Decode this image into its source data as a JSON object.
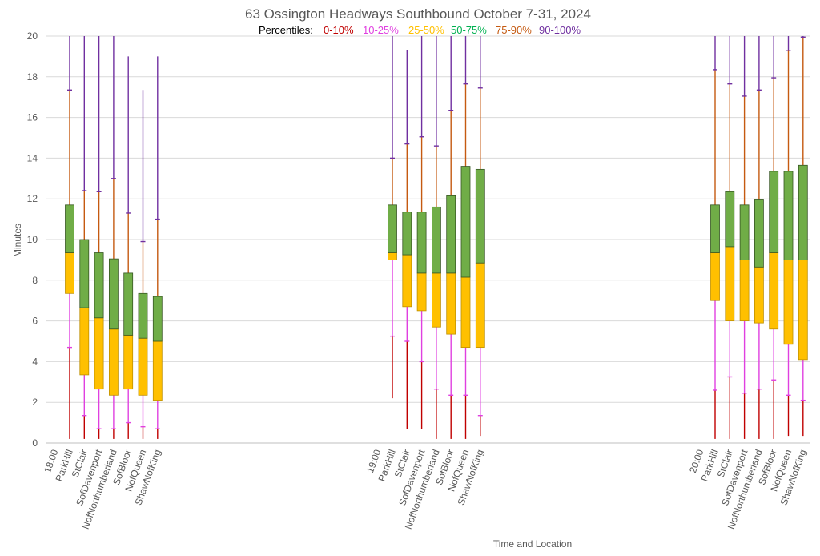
{
  "chart_data": {
    "type": "box",
    "title": "63 Ossington Headways Southbound October 7-31, 2024",
    "legend": {
      "prefix": "Percentiles:",
      "items": [
        {
          "label": "0-10%",
          "color": "#c00000"
        },
        {
          "label": "10-25%",
          "color": "#e040e0"
        },
        {
          "label": "25-50%",
          "color": "#ffc000"
        },
        {
          "label": "50-75%",
          "color": "#00b050"
        },
        {
          "label": "75-90%",
          "color": "#c55a11"
        },
        {
          "label": "90-100%",
          "color": "#7030a0"
        }
      ]
    },
    "xlabel": "Time and Location",
    "ylabel": "Minutes",
    "ylim": [
      0,
      20
    ],
    "yticks": [
      0,
      2,
      4,
      6,
      8,
      10,
      12,
      14,
      16,
      18,
      20
    ],
    "grid": true,
    "colors": {
      "p0_10": "#c00000",
      "p10_25": "#e040e0",
      "p25_50": "#ffc000",
      "p50_75": "#70ad47",
      "p75_90": "#c55a11",
      "p90_100": "#7030a0",
      "box_outline_lower": "#bf9000",
      "box_outline_upper": "#375623"
    },
    "groups": [
      {
        "time": "18:00",
        "boxes": [
          {
            "location": "ParkHill",
            "min": 0.2,
            "p10": 4.7,
            "p25": 7.35,
            "median": 9.35,
            "p75": 11.7,
            "p90": 17.35,
            "max": 20
          },
          {
            "location": "StClair",
            "min": 0.2,
            "p10": 1.35,
            "p25": 3.35,
            "median": 6.65,
            "p75": 10.0,
            "p90": 12.4,
            "max": 20
          },
          {
            "location": "SofDavenport",
            "min": 0.2,
            "p10": 0.7,
            "p25": 2.65,
            "median": 6.15,
            "p75": 9.35,
            "p90": 12.35,
            "max": 20
          },
          {
            "location": "NofNorthumberland",
            "min": 0.2,
            "p10": 0.7,
            "p25": 2.35,
            "median": 5.6,
            "p75": 9.05,
            "p90": 13.0,
            "max": 20
          },
          {
            "location": "SofBloor",
            "min": 0.2,
            "p10": 1.0,
            "p25": 2.65,
            "median": 5.3,
            "p75": 8.35,
            "p90": 11.3,
            "max": 19.0
          },
          {
            "location": "NofQueen",
            "min": 0.2,
            "p10": 0.8,
            "p25": 2.35,
            "median": 5.15,
            "p75": 7.35,
            "p90": 9.9,
            "max": 17.35
          },
          {
            "location": "ShawNofKing",
            "min": 0.2,
            "p10": 0.7,
            "p25": 2.1,
            "median": 5.0,
            "p75": 7.2,
            "p90": 11.0,
            "max": 19.0
          }
        ]
      },
      {
        "time": "19:00",
        "boxes": [
          {
            "location": "ParkHill",
            "min": 2.2,
            "p10": 5.25,
            "p25": 9.0,
            "median": 9.35,
            "p75": 11.7,
            "p90": 14.0,
            "max": 20
          },
          {
            "location": "StClair",
            "min": 0.7,
            "p10": 5.0,
            "p25": 6.7,
            "median": 9.25,
            "p75": 11.35,
            "p90": 14.7,
            "max": 19.3
          },
          {
            "location": "SofDavenport",
            "min": 0.7,
            "p10": 4.0,
            "p25": 6.5,
            "median": 8.35,
            "p75": 11.35,
            "p90": 15.05,
            "max": 20
          },
          {
            "location": "NofNorthumberland",
            "min": 0.2,
            "p10": 2.65,
            "p25": 5.7,
            "median": 8.35,
            "p75": 11.6,
            "p90": 14.6,
            "max": 20
          },
          {
            "location": "SofBloor",
            "min": 0.2,
            "p10": 2.35,
            "p25": 5.35,
            "median": 8.35,
            "p75": 12.15,
            "p90": 16.35,
            "max": 20
          },
          {
            "location": "NofQueen",
            "min": 0.2,
            "p10": 2.35,
            "p25": 4.7,
            "median": 8.15,
            "p75": 13.6,
            "p90": 17.65,
            "max": 20
          },
          {
            "location": "ShawNofKing",
            "min": 0.35,
            "p10": 1.35,
            "p25": 4.7,
            "median": 8.85,
            "p75": 13.45,
            "p90": 17.45,
            "max": 20
          }
        ]
      },
      {
        "time": "20:00",
        "boxes": [
          {
            "location": "ParkHill",
            "min": 0.2,
            "p10": 2.6,
            "p25": 7.0,
            "median": 9.35,
            "p75": 11.7,
            "p90": 18.35,
            "max": 20
          },
          {
            "location": "StClair",
            "min": 0.2,
            "p10": 3.25,
            "p25": 6.0,
            "median": 9.65,
            "p75": 12.35,
            "p90": 17.65,
            "max": 20
          },
          {
            "location": "SofDavenport",
            "min": 0.2,
            "p10": 2.45,
            "p25": 6.0,
            "median": 9.0,
            "p75": 11.7,
            "p90": 17.05,
            "max": 20
          },
          {
            "location": "NofNorthumberland",
            "min": 0.2,
            "p10": 2.65,
            "p25": 5.9,
            "median": 8.65,
            "p75": 11.95,
            "p90": 17.35,
            "max": 20
          },
          {
            "location": "SofBloor",
            "min": 0.2,
            "p10": 3.1,
            "p25": 5.6,
            "median": 9.35,
            "p75": 13.35,
            "p90": 17.95,
            "max": 20
          },
          {
            "location": "NofQueen",
            "min": 0.35,
            "p10": 2.35,
            "p25": 4.85,
            "median": 9.0,
            "p75": 13.35,
            "p90": 19.3,
            "max": 20
          },
          {
            "location": "ShawNofKing",
            "min": 0.35,
            "p10": 2.1,
            "p25": 4.1,
            "median": 9.0,
            "p75": 13.65,
            "p90": 19.95,
            "max": 20
          }
        ]
      }
    ]
  }
}
